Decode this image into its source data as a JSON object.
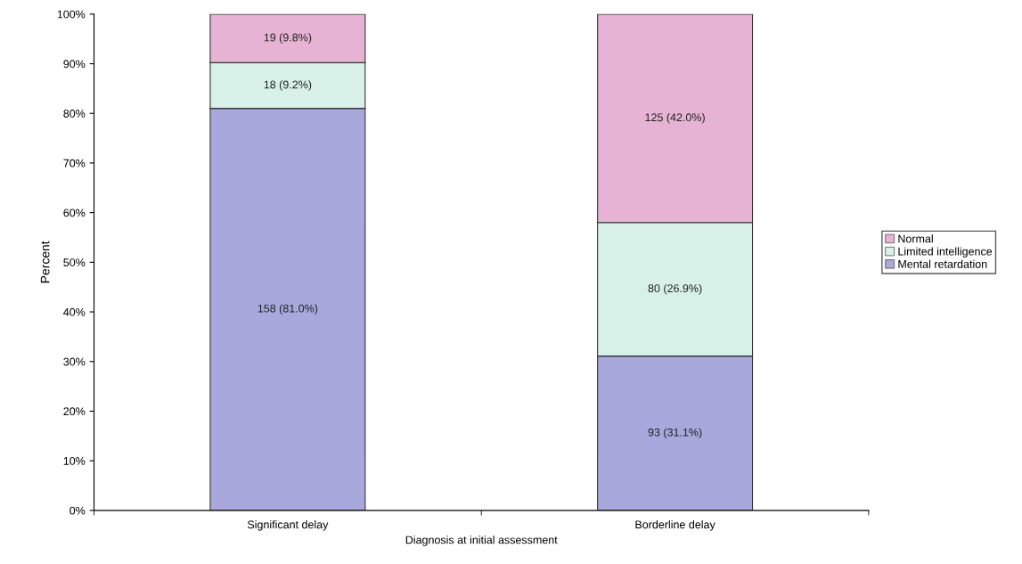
{
  "chart_data": {
    "type": "bar",
    "stacked": true,
    "xlabel": "Diagnosis at initial assessment",
    "ylabel": "Percent",
    "categories": [
      "Significant delay",
      "Borderline delay"
    ],
    "series": [
      {
        "name": "Mental retardation",
        "color": "#a9a8dc",
        "values": [
          81.0,
          31.1
        ],
        "value_labels": [
          "158 (81.0%)",
          "93 (31.1%)"
        ]
      },
      {
        "name": "Limited intelligence",
        "color": "#d8f1e8",
        "values": [
          9.2,
          26.9
        ],
        "value_labels": [
          "18 (9.2%)",
          "80 (26.9%)"
        ]
      },
      {
        "name": "Normal",
        "color": "#e6b3d5",
        "values": [
          9.8,
          42.0
        ],
        "value_labels": [
          "19 (9.8%)",
          "125 (42.0%)"
        ]
      }
    ],
    "ylim": [
      0,
      100
    ],
    "yticks": [
      {
        "value": 0,
        "label": "0%"
      },
      {
        "value": 10,
        "label": "10%"
      },
      {
        "value": 20,
        "label": "20%"
      },
      {
        "value": 30,
        "label": "30%"
      },
      {
        "value": 40,
        "label": "40%"
      },
      {
        "value": 50,
        "label": "50%"
      },
      {
        "value": 60,
        "label": "60%"
      },
      {
        "value": 70,
        "label": "70%"
      },
      {
        "value": 80,
        "label": "80%"
      },
      {
        "value": 90,
        "label": "90%"
      },
      {
        "value": 100,
        "label": "100%"
      }
    ],
    "legend": "right",
    "grid": false
  }
}
